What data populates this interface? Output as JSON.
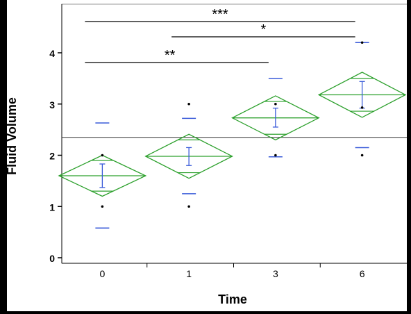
{
  "chart_data": {
    "type": "scatter",
    "title": "",
    "xlabel": "Time",
    "ylabel": "Fluid Volume",
    "categories": [
      "0",
      "1",
      "3",
      "6"
    ],
    "ylim": [
      -0.1,
      4.9
    ],
    "y_ticks": [
      0,
      1,
      2,
      3,
      4
    ],
    "grand_mean": 2.35,
    "grid": false,
    "groups": [
      {
        "category": "0",
        "mean": 1.6,
        "ci": [
          1.2,
          2.0
        ],
        "ci_inner": [
          1.3,
          1.9
        ],
        "error_bar": [
          1.37,
          1.83
        ],
        "quantile_lines": [
          0.58,
          2.63
        ],
        "points": [
          1.0,
          2.0
        ]
      },
      {
        "category": "1",
        "mean": 1.98,
        "ci": [
          1.55,
          2.41
        ],
        "ci_inner": [
          1.66,
          2.3
        ],
        "error_bar": [
          1.8,
          2.15
        ],
        "quantile_lines": [
          1.25,
          2.72
        ],
        "points": [
          1.0,
          3.0
        ]
      },
      {
        "category": "3",
        "mean": 2.73,
        "ci": [
          2.3,
          3.16
        ],
        "ci_inner": [
          2.41,
          3.05
        ],
        "error_bar": [
          2.55,
          2.92
        ],
        "quantile_lines": [
          1.97,
          3.5
        ],
        "points": [
          2.0,
          3.0
        ]
      },
      {
        "category": "6",
        "mean": 3.18,
        "ci": [
          2.74,
          3.62
        ],
        "ci_inner": [
          2.86,
          3.5
        ],
        "error_bar": [
          2.92,
          3.44
        ],
        "quantile_lines": [
          2.15,
          4.2
        ],
        "points": [
          2.0,
          2.93,
          4.2
        ]
      }
    ],
    "significance": [
      {
        "from": "0",
        "to": "6",
        "label": "***"
      },
      {
        "from": "1",
        "to": "6",
        "label": "*"
      },
      {
        "from": "0",
        "to": "3",
        "label": "**"
      }
    ],
    "colors": {
      "diamond": "#2ca02c",
      "error": "#3a5bd9",
      "quantile": "#3a5bd9",
      "points": "#000000",
      "mean_line": "#333333",
      "sig": "#000000"
    }
  }
}
